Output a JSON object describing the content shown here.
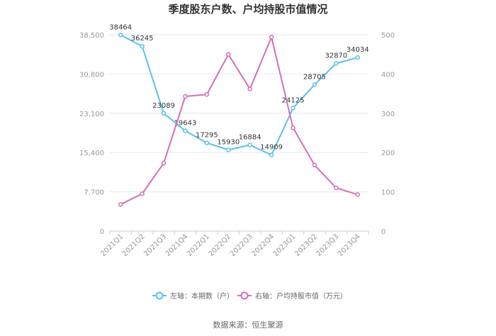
{
  "chart_data": {
    "type": "line",
    "title": "季度股东户数、户均持股市值情况",
    "categories": [
      "2021Q1",
      "2021Q2",
      "2021Q3",
      "2021Q4",
      "2022Q1",
      "2022Q2",
      "2022Q3",
      "2022Q4",
      "2023Q1",
      "2023Q2",
      "2023Q3",
      "2023Q4"
    ],
    "y_left": {
      "ticks": [
        "0",
        "7,700",
        "15,400",
        "23,100",
        "30,800",
        "38,500"
      ],
      "range": [
        0,
        38500
      ]
    },
    "y_right": {
      "ticks": [
        "0",
        "100",
        "200",
        "300",
        "400",
        "500"
      ],
      "range": [
        0,
        500
      ]
    },
    "series": [
      {
        "name": "左轴：本期数（户）",
        "axis": "left",
        "color": "#5bc0eb",
        "values": [
          38464,
          36245,
          23089,
          19643,
          17295,
          15930,
          16884,
          14909,
          24125,
          28705,
          32870,
          34034
        ],
        "labels": [
          "38464",
          "36245",
          "23089",
          "19643",
          "17295",
          "15930",
          "16884",
          "14909",
          "24125",
          "28705",
          "32870",
          "34034"
        ]
      },
      {
        "name": "右轴：户均持股市值（万元）",
        "axis": "right",
        "color": "#d46fb7",
        "values": [
          68,
          95,
          173,
          343,
          348,
          450,
          362,
          494,
          263,
          168,
          110,
          93
        ]
      }
    ],
    "grid": true,
    "legend_position": "bottom",
    "source": "数据来源：恒生聚源"
  }
}
